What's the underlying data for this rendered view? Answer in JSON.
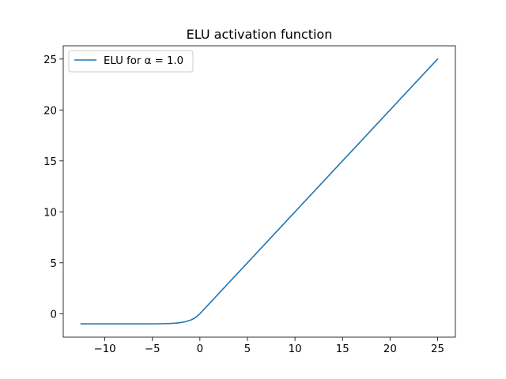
{
  "chart_data": {
    "type": "line",
    "title": "ELU activation function",
    "xlabel": "",
    "ylabel": "",
    "xlim": [
      -14.375,
      26.875
    ],
    "ylim": [
      -2.3,
      26.3
    ],
    "xticks": [
      -10,
      -5,
      0,
      5,
      10,
      15,
      20,
      25
    ],
    "xtick_labels": [
      "−10",
      "−5",
      "0",
      "5",
      "10",
      "15",
      "20",
      "25"
    ],
    "yticks": [
      0,
      5,
      10,
      15,
      20,
      25
    ],
    "ytick_labels": [
      "0",
      "5",
      "10",
      "15",
      "20",
      "25"
    ],
    "grid": false,
    "legend_position": "top-left",
    "series": [
      {
        "name": "ELU for α = 1.0",
        "color": "#1f77b4",
        "x": [
          -12.5,
          -10,
          -8,
          -6,
          -5,
          -4,
          -3,
          -2.5,
          -2,
          -1.5,
          -1,
          -0.75,
          -0.5,
          -0.25,
          0,
          5,
          10,
          15,
          20,
          25
        ],
        "y": [
          -1.0,
          -1.0,
          -0.9997,
          -0.9975,
          -0.9933,
          -0.9817,
          -0.9502,
          -0.9179,
          -0.8647,
          -0.7769,
          -0.6321,
          -0.5276,
          -0.3935,
          -0.2212,
          0,
          5,
          10,
          15,
          20,
          25
        ]
      }
    ]
  }
}
